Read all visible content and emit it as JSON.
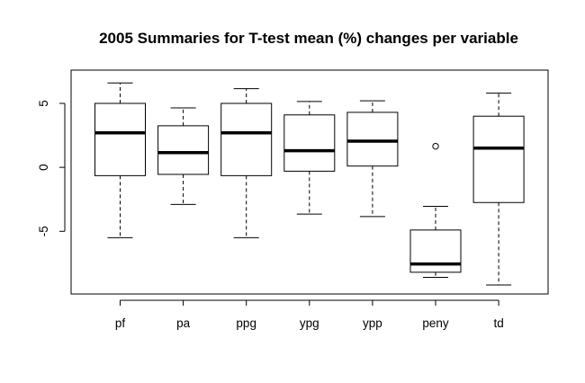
{
  "chart_data": {
    "type": "boxplot",
    "title": "2005  Summaries for T-test mean (%) changes per variable",
    "xlabel": "",
    "ylabel": "",
    "ylim": [
      -9.9,
      7.6
    ],
    "yticks": [
      5,
      0,
      -5
    ],
    "ytick_labels": [
      "5",
      "0",
      "-5"
    ],
    "grid": false,
    "categories": [
      "pf",
      "pa",
      "ppg",
      "ypg",
      "ypp",
      "peny",
      "td"
    ],
    "boxes": [
      {
        "whisker_low": -5.5,
        "q1": -0.65,
        "median": 2.7,
        "q3": 5.0,
        "whisker_high": 6.6,
        "outliers": []
      },
      {
        "whisker_low": -2.9,
        "q1": -0.55,
        "median": 1.15,
        "q3": 3.25,
        "whisker_high": 4.65,
        "outliers": []
      },
      {
        "whisker_low": -5.5,
        "q1": -0.65,
        "median": 2.7,
        "q3": 5.0,
        "whisker_high": 6.15,
        "outliers": []
      },
      {
        "whisker_low": -3.65,
        "q1": -0.3,
        "median": 1.3,
        "q3": 4.1,
        "whisker_high": 5.15,
        "outliers": []
      },
      {
        "whisker_low": -3.85,
        "q1": 0.1,
        "median": 2.05,
        "q3": 4.3,
        "whisker_high": 5.2,
        "outliers": []
      },
      {
        "whisker_low": -8.6,
        "q1": -8.2,
        "median": -7.55,
        "q3": -4.9,
        "whisker_high": -3.05,
        "outliers": [
          1.65
        ]
      },
      {
        "whisker_low": -9.2,
        "q1": -2.75,
        "median": 1.5,
        "q3": 4.0,
        "whisker_high": 5.8,
        "outliers": []
      }
    ]
  }
}
